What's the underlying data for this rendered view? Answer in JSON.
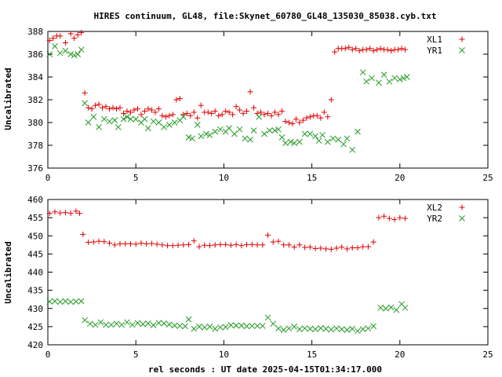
{
  "title": "HIRES continuum, GL48, file:Skynet_60780_GL48_135030_85038.cyb.txt",
  "xlabel": "rel seconds : UT date 2025-04-15T01:34:17.000",
  "colors": {
    "red": "#e00000",
    "green": "#229922"
  },
  "chart_data": [
    {
      "type": "scatter",
      "ylabel": "Uncalibrated",
      "xlim": [
        0,
        25
      ],
      "ylim": [
        376,
        388
      ],
      "xticks": [
        0,
        5,
        10,
        15,
        20,
        25
      ],
      "yticks": [
        376,
        378,
        380,
        382,
        384,
        386,
        388
      ],
      "grid": false,
      "legend_position": "top-right",
      "series": [
        {
          "name": "XL1",
          "marker": "plus",
          "color": "#e00000",
          "x": [
            0.1,
            0.3,
            0.5,
            0.7,
            1.0,
            1.3,
            1.5,
            1.7,
            1.9,
            2.1,
            2.3,
            2.5,
            2.7,
            2.9,
            3.1,
            3.3,
            3.5,
            3.7,
            3.9,
            4.1,
            4.3,
            4.5,
            4.7,
            4.9,
            5.1,
            5.3,
            5.5,
            5.7,
            5.9,
            6.1,
            6.3,
            6.5,
            6.7,
            6.9,
            7.1,
            7.3,
            7.5,
            7.7,
            7.9,
            8.1,
            8.3,
            8.5,
            8.7,
            8.9,
            9.1,
            9.3,
            9.5,
            9.7,
            9.9,
            10.1,
            10.3,
            10.5,
            10.7,
            10.9,
            11.1,
            11.3,
            11.5,
            11.7,
            11.9,
            12.1,
            12.3,
            12.5,
            12.7,
            12.9,
            13.1,
            13.3,
            13.5,
            13.7,
            13.9,
            14.1,
            14.3,
            14.5,
            14.7,
            14.9,
            15.1,
            15.3,
            15.5,
            15.7,
            15.9,
            16.1,
            16.3,
            16.5,
            16.7,
            16.9,
            17.1,
            17.3,
            17.5,
            17.7,
            17.9,
            18.1,
            18.3,
            18.5,
            18.7,
            18.9,
            19.1,
            19.3,
            19.5,
            19.7,
            19.9,
            20.1,
            20.3
          ],
          "y": [
            387.2,
            387.4,
            387.6,
            387.6,
            387.0,
            387.8,
            387.4,
            387.7,
            387.9,
            382.6,
            381.3,
            381.2,
            381.5,
            381.6,
            381.3,
            381.4,
            381.2,
            381.3,
            381.2,
            381.3,
            380.8,
            381.0,
            380.9,
            381.1,
            381.2,
            380.7,
            381.0,
            381.2,
            381.1,
            380.9,
            381.2,
            380.6,
            380.5,
            380.6,
            380.7,
            382.0,
            382.1,
            380.7,
            380.8,
            380.6,
            380.9,
            380.4,
            381.5,
            380.9,
            380.9,
            380.8,
            381.0,
            380.6,
            380.7,
            381.0,
            380.9,
            380.7,
            381.4,
            381.1,
            380.8,
            381.0,
            382.7,
            381.3,
            380.8,
            380.9,
            380.7,
            380.8,
            380.6,
            380.9,
            380.7,
            381.0,
            380.1,
            380.0,
            379.9,
            380.3,
            380.0,
            380.2,
            380.4,
            380.5,
            380.6,
            380.6,
            380.4,
            380.9,
            380.5,
            382.0,
            386.2,
            386.5,
            386.5,
            386.5,
            386.6,
            386.4,
            386.5,
            386.3,
            386.4,
            386.4,
            386.5,
            386.3,
            386.4,
            386.5,
            386.4,
            386.4,
            386.3,
            386.4,
            386.4,
            386.5,
            386.4
          ]
        },
        {
          "name": "YR1",
          "marker": "cross",
          "color": "#229922",
          "x": [
            0.1,
            0.4,
            0.7,
            1.0,
            1.3,
            1.5,
            1.7,
            1.9,
            2.1,
            2.3,
            2.6,
            2.9,
            3.2,
            3.5,
            3.8,
            4.0,
            4.3,
            4.5,
            4.7,
            5.0,
            5.3,
            5.5,
            5.7,
            6.0,
            6.3,
            6.6,
            6.9,
            7.2,
            7.5,
            7.7,
            8.0,
            8.2,
            8.5,
            8.7,
            9.0,
            9.2,
            9.5,
            9.8,
            10.1,
            10.3,
            10.6,
            10.9,
            11.2,
            11.5,
            11.7,
            12.0,
            12.3,
            12.6,
            12.9,
            13.1,
            13.3,
            13.5,
            13.8,
            14.0,
            14.3,
            14.6,
            14.9,
            15.2,
            15.4,
            15.6,
            15.9,
            16.2,
            16.5,
            16.8,
            17.0,
            17.3,
            17.6,
            17.9,
            18.1,
            18.4,
            18.8,
            19.1,
            19.4,
            19.7,
            20.0,
            20.2,
            20.4
          ],
          "y": [
            386.0,
            386.7,
            386.1,
            386.3,
            386.0,
            385.9,
            386.0,
            386.4,
            381.7,
            380.0,
            380.5,
            379.6,
            380.3,
            380.1,
            380.2,
            379.6,
            380.3,
            380.5,
            380.3,
            380.3,
            380.0,
            380.3,
            379.5,
            380.1,
            380.0,
            379.6,
            379.8,
            380.0,
            380.2,
            380.5,
            378.7,
            378.6,
            379.8,
            378.8,
            379.0,
            378.9,
            379.2,
            379.4,
            379.2,
            379.5,
            379.0,
            379.4,
            378.6,
            378.5,
            379.3,
            380.5,
            379.0,
            379.3,
            379.3,
            379.4,
            378.7,
            378.2,
            378.3,
            378.2,
            378.3,
            379.0,
            379.0,
            378.8,
            378.4,
            378.9,
            378.3,
            378.6,
            378.5,
            378.1,
            378.6,
            377.6,
            379.2,
            384.4,
            383.6,
            383.9,
            383.5,
            384.2,
            383.6,
            383.9,
            383.8,
            383.9,
            384.0
          ]
        }
      ]
    },
    {
      "type": "scatter",
      "ylabel": "Uncalibrated",
      "xlim": [
        0,
        25
      ],
      "ylim": [
        420,
        460
      ],
      "xticks": [
        0,
        5,
        10,
        15,
        20,
        25
      ],
      "yticks": [
        420,
        425,
        430,
        435,
        440,
        445,
        450,
        455,
        460
      ],
      "grid": false,
      "legend_position": "top-right",
      "series": [
        {
          "name": "XL2",
          "marker": "plus",
          "color": "#e00000",
          "x": [
            0.1,
            0.4,
            0.7,
            1.0,
            1.3,
            1.6,
            1.8,
            2.0,
            2.3,
            2.6,
            2.9,
            3.2,
            3.5,
            3.8,
            4.1,
            4.4,
            4.7,
            5.0,
            5.3,
            5.6,
            5.9,
            6.2,
            6.5,
            6.8,
            7.1,
            7.4,
            7.7,
            8.0,
            8.3,
            8.6,
            8.9,
            9.2,
            9.5,
            9.8,
            10.1,
            10.4,
            10.7,
            11.0,
            11.3,
            11.6,
            11.9,
            12.2,
            12.5,
            12.8,
            13.1,
            13.4,
            13.7,
            14.0,
            14.3,
            14.6,
            14.9,
            15.2,
            15.5,
            15.8,
            16.1,
            16.4,
            16.7,
            17.0,
            17.3,
            17.6,
            17.9,
            18.2,
            18.5,
            18.8,
            19.1,
            19.4,
            19.7,
            20.0,
            20.3
          ],
          "y": [
            456.2,
            456.6,
            456.3,
            456.4,
            456.2,
            456.8,
            456.2,
            450.4,
            448.2,
            448.3,
            448.5,
            448.4,
            448.0,
            447.5,
            447.8,
            447.8,
            447.8,
            447.7,
            448.0,
            447.8,
            447.9,
            447.7,
            447.5,
            447.3,
            447.3,
            447.4,
            447.5,
            447.6,
            448.6,
            447.0,
            447.4,
            447.3,
            447.5,
            447.6,
            447.6,
            447.4,
            447.6,
            447.3,
            447.6,
            447.6,
            447.5,
            447.5,
            450.2,
            448.3,
            448.5,
            447.5,
            447.5,
            446.9,
            447.5,
            446.8,
            446.9,
            446.5,
            446.6,
            446.4,
            446.3,
            446.6,
            446.9,
            446.4,
            446.7,
            446.7,
            447.0,
            447.0,
            448.3,
            455.0,
            455.4,
            454.8,
            454.5,
            455.0,
            454.8
          ]
        },
        {
          "name": "YR2",
          "marker": "cross",
          "color": "#229922",
          "x": [
            0.1,
            0.4,
            0.7,
            1.0,
            1.3,
            1.6,
            1.9,
            2.1,
            2.4,
            2.7,
            3.0,
            3.3,
            3.6,
            3.9,
            4.2,
            4.5,
            4.8,
            5.1,
            5.4,
            5.7,
            6.0,
            6.3,
            6.6,
            6.9,
            7.2,
            7.5,
            7.8,
            8.0,
            8.3,
            8.6,
            8.9,
            9.2,
            9.5,
            9.8,
            10.1,
            10.4,
            10.7,
            11.0,
            11.3,
            11.6,
            11.9,
            12.2,
            12.5,
            12.8,
            13.1,
            13.4,
            13.7,
            14.0,
            14.3,
            14.6,
            14.9,
            15.2,
            15.5,
            15.8,
            16.1,
            16.4,
            16.7,
            17.0,
            17.3,
            17.6,
            17.9,
            18.2,
            18.5,
            18.9,
            19.2,
            19.5,
            19.8,
            20.1,
            20.3
          ],
          "y": [
            431.9,
            432.0,
            431.8,
            432.0,
            431.8,
            431.9,
            432.0,
            426.8,
            425.8,
            425.5,
            426.2,
            425.5,
            425.5,
            425.8,
            425.5,
            426.2,
            425.5,
            426.0,
            425.7,
            425.9,
            425.4,
            426.0,
            425.9,
            425.6,
            425.3,
            425.2,
            425.1,
            427.0,
            424.4,
            425.0,
            424.8,
            425.0,
            424.4,
            424.8,
            424.9,
            425.4,
            425.3,
            425.3,
            425.1,
            425.2,
            425.2,
            425.2,
            427.5,
            425.8,
            424.5,
            424.1,
            424.5,
            425.0,
            424.3,
            424.5,
            424.4,
            424.3,
            424.6,
            424.4,
            424.2,
            424.5,
            424.3,
            424.1,
            424.4,
            423.8,
            424.3,
            424.5,
            425.1,
            430.2,
            430.0,
            430.3,
            429.6,
            431.2,
            430.2
          ]
        }
      ]
    }
  ]
}
